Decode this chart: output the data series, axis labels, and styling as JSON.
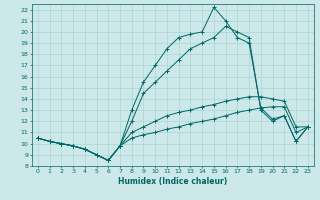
{
  "xlabel": "Humidex (Indice chaleur)",
  "xlim": [
    -0.5,
    23.5
  ],
  "ylim": [
    8,
    22.5
  ],
  "yticks": [
    8,
    9,
    10,
    11,
    12,
    13,
    14,
    15,
    16,
    17,
    18,
    19,
    20,
    21,
    22
  ],
  "xticks": [
    0,
    1,
    2,
    3,
    4,
    5,
    6,
    7,
    8,
    9,
    10,
    11,
    12,
    13,
    14,
    15,
    16,
    17,
    18,
    19,
    20,
    21,
    22,
    23
  ],
  "bg_color": "#cce8e8",
  "grid_color": "#aad4d4",
  "line_color": "#006666",
  "lines": [
    {
      "x": [
        0,
        1,
        2,
        3,
        4,
        5,
        6,
        7,
        8,
        9,
        10,
        11,
        12,
        13,
        14,
        15,
        16,
        17,
        18,
        19,
        20,
        21,
        22,
        23
      ],
      "y": [
        10.5,
        10.2,
        10.0,
        9.8,
        9.5,
        9.0,
        8.5,
        9.8,
        10.5,
        10.8,
        11.0,
        11.3,
        11.5,
        11.8,
        12.0,
        12.2,
        12.5,
        12.8,
        13.0,
        13.2,
        13.3,
        13.3,
        11.0,
        11.5
      ]
    },
    {
      "x": [
        0,
        1,
        2,
        3,
        4,
        5,
        6,
        7,
        8,
        9,
        10,
        11,
        12,
        13,
        14,
        15,
        16,
        17,
        18,
        19,
        20,
        21,
        22,
        23
      ],
      "y": [
        10.5,
        10.2,
        10.0,
        9.8,
        9.5,
        9.0,
        8.5,
        9.8,
        11.0,
        11.5,
        12.0,
        12.5,
        12.8,
        13.0,
        13.3,
        13.5,
        13.8,
        14.0,
        14.2,
        14.2,
        14.0,
        13.8,
        11.5,
        11.5
      ]
    },
    {
      "x": [
        0,
        1,
        2,
        3,
        4,
        5,
        6,
        7,
        8,
        9,
        10,
        11,
        12,
        13,
        14,
        15,
        16,
        17,
        18,
        19,
        20,
        21,
        22,
        23
      ],
      "y": [
        10.5,
        10.2,
        10.0,
        9.8,
        9.5,
        9.0,
        8.5,
        9.8,
        12.0,
        14.5,
        15.5,
        16.5,
        17.5,
        18.5,
        19.0,
        19.5,
        20.5,
        20.0,
        19.5,
        13.0,
        12.0,
        12.5,
        10.2,
        11.5
      ]
    },
    {
      "x": [
        0,
        1,
        2,
        3,
        4,
        5,
        6,
        7,
        8,
        9,
        10,
        11,
        12,
        13,
        14,
        15,
        16,
        17,
        18,
        19,
        20,
        21,
        22,
        23
      ],
      "y": [
        10.5,
        10.2,
        10.0,
        9.8,
        9.5,
        9.0,
        8.5,
        9.8,
        13.0,
        15.5,
        17.0,
        18.5,
        19.5,
        19.8,
        20.0,
        22.2,
        21.0,
        19.5,
        19.0,
        13.2,
        12.2,
        12.5,
        10.2,
        11.5
      ]
    }
  ]
}
